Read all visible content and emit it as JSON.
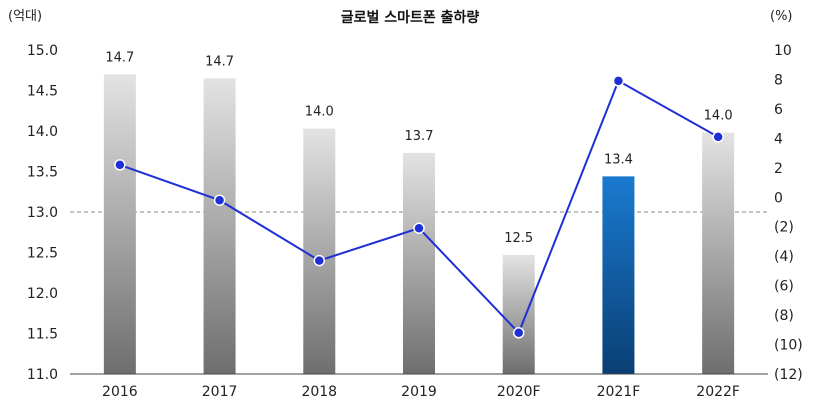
{
  "chart_data": {
    "type": "bar",
    "title": "글로벌 스마트폰 출하량",
    "left_unit": "(억대)",
    "right_unit": "(%)",
    "categories": [
      "2016",
      "2017",
      "2018",
      "2019",
      "2020F",
      "2021F",
      "2022F"
    ],
    "bar_labels": [
      "14.7",
      "14.7",
      "14.0",
      "13.7",
      "12.5",
      "13.4",
      "14.0"
    ],
    "series": [
      {
        "type": "bar",
        "axis": "left",
        "values": [
          14.7,
          14.65,
          14.03,
          13.73,
          12.47,
          13.44,
          13.98
        ]
      },
      {
        "type": "line",
        "axis": "right",
        "values": [
          2.2,
          -0.2,
          -4.3,
          -2.1,
          -9.2,
          7.9,
          4.1
        ]
      }
    ],
    "left_axis": {
      "ylim": [
        11.0,
        15.0
      ],
      "ticks": [
        "11.0",
        "11.5",
        "12.0",
        "12.5",
        "13.0",
        "13.5",
        "14.0",
        "14.5",
        "15.0"
      ]
    },
    "right_axis": {
      "ylim": [
        -12,
        10
      ],
      "ticks": [
        "(12)",
        "(10)",
        "(8)",
        "(6)",
        "(4)",
        "(2)",
        "0",
        "2",
        "4",
        "6",
        "8",
        "10"
      ]
    },
    "reference_line": 13.0,
    "highlight_category": "2021F",
    "colors": {
      "bar_top": "#e3e3e3",
      "bar_bottom": "#6e6e6e",
      "highlight_top": "#1a7ad0",
      "highlight_bottom": "#0a3f74",
      "line": "#1f2fd6",
      "marker_fill": "#1f2fd6",
      "marker_stroke": "#ffffff",
      "reference_line": "#888888"
    }
  }
}
